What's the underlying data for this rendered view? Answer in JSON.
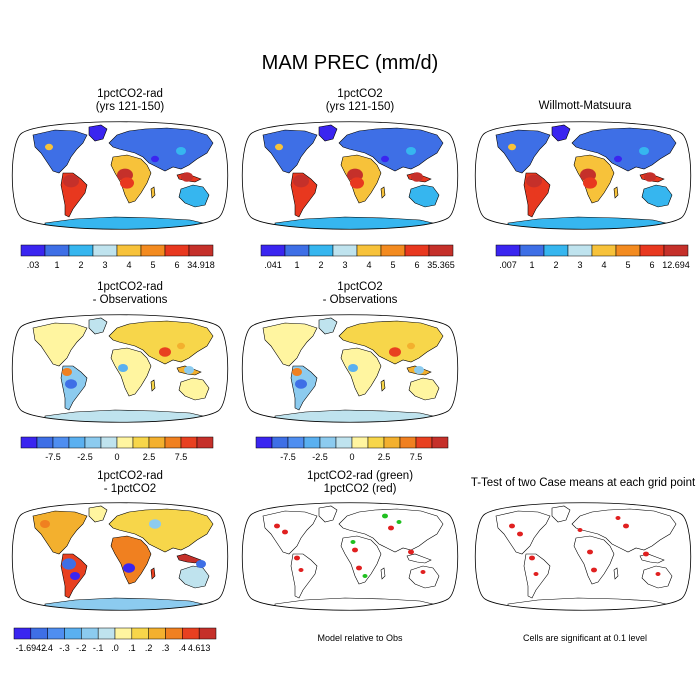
{
  "main_title": "MAM PREC (mm/d)",
  "panels": [
    {
      "title1": "1pctCO2-rad",
      "title2": "(yrs 121-150)",
      "scheme": "precip"
    },
    {
      "title1": "1pctCO2",
      "title2": "(yrs 121-150)",
      "scheme": "precip"
    },
    {
      "title1": "Willmott-Matsuura",
      "title2": "",
      "scheme": "precip"
    },
    {
      "title1": "1pctCO2-rad",
      "title2": "- Observations",
      "scheme": "bias"
    },
    {
      "title1": "1pctCO2",
      "title2": "- Observations",
      "scheme": "bias"
    },
    {
      "title1": "1pctCO2-rad",
      "title2": "- 1pctCO2",
      "scheme": "diff"
    },
    {
      "title1": "1pctCO2-rad (green)",
      "title2": "1pctCO2 (red)",
      "scheme": "points"
    },
    {
      "title1": "T-Test of two Case means at each grid point",
      "title2": "",
      "scheme": "ttest"
    }
  ],
  "colorbars": [
    {
      "labels": [
        ".03",
        "1",
        "2",
        "3",
        "4",
        "5",
        "6",
        "34.918"
      ],
      "colors": [
        "#3a25f0",
        "#3e6fe6",
        "#36b6ef",
        "#bfe3ee",
        "#f7c23a",
        "#f38b20",
        "#e8381f",
        "#c5302a"
      ]
    },
    {
      "labels": [
        ".041",
        "1",
        "2",
        "3",
        "4",
        "5",
        "6",
        "35.365"
      ],
      "colors": [
        "#3a25f0",
        "#3e6fe6",
        "#36b6ef",
        "#bfe3ee",
        "#f7c23a",
        "#f38b20",
        "#e8381f",
        "#c5302a"
      ]
    },
    {
      "labels": [
        ".007",
        "1",
        "2",
        "3",
        "4",
        "5",
        "6",
        "12.694"
      ],
      "colors": [
        "#3a25f0",
        "#3e6fe6",
        "#36b6ef",
        "#bfe3ee",
        "#f7c23a",
        "#f38b20",
        "#e8381f",
        "#c5302a"
      ]
    },
    {
      "labels": [
        "-7.5",
        "-2.5",
        "0",
        "2.5",
        "7.5"
      ],
      "colors": [
        "#3a25f0",
        "#3e6fe6",
        "#4f8ef0",
        "#5ab0f0",
        "#8ccbef",
        "#bfe3ee",
        "#fff5a0",
        "#f7d64a",
        "#f3b02e",
        "#f08020",
        "#e84020",
        "#c5302a"
      ]
    },
    {
      "labels": [
        "-7.5",
        "-2.5",
        "0",
        "2.5",
        "7.5"
      ],
      "colors": [
        "#3a25f0",
        "#3e6fe6",
        "#4f8ef0",
        "#5ab0f0",
        "#8ccbef",
        "#bfe3ee",
        "#fff5a0",
        "#f7d64a",
        "#f3b02e",
        "#f08020",
        "#e84020",
        "#c5302a"
      ]
    },
    {
      "labels": [
        "-1.6942",
        "-.4",
        "-.3",
        "-.2",
        "-.1",
        ".0",
        ".1",
        ".2",
        ".3",
        ".4",
        "4.613"
      ],
      "colors": [
        "#3a25f0",
        "#3e6fe6",
        "#4f8ef0",
        "#5ab0f0",
        "#8ccbef",
        "#bfe3ee",
        "#fff5a0",
        "#f7d64a",
        "#f3b02e",
        "#f08020",
        "#e84020",
        "#c5302a"
      ]
    }
  ],
  "notes": {
    "model_relative": "Model relative to Obs",
    "significance": "Cells are significant at 0.1 level"
  }
}
